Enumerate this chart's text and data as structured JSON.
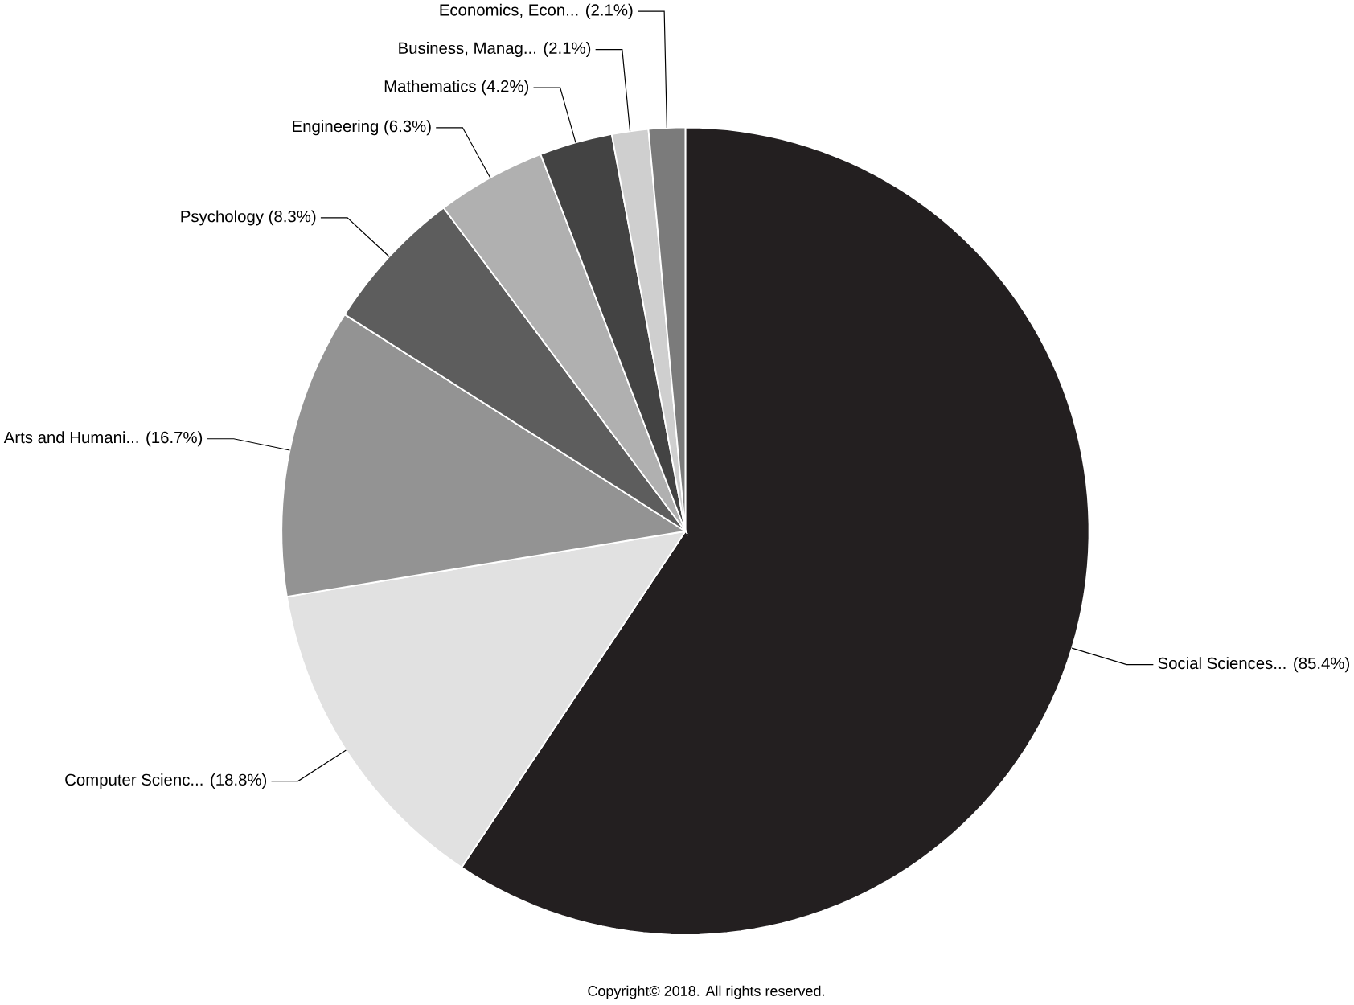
{
  "chart_data": {
    "type": "pie",
    "categories": [
      "Social Sciences...",
      "Computer Scienc...",
      "Arts and Humani...",
      "Psychology",
      "Engineering",
      "Mathematics",
      "Business, Manag...",
      "Economics, Econ..."
    ],
    "values": [
      85.4,
      18.8,
      16.7,
      8.3,
      6.3,
      4.2,
      2.1,
      2.1
    ],
    "value_labels": [
      "(85.4%)",
      "(18.8%)",
      "(16.7%)",
      "(8.3%)",
      "(6.3%)",
      "(4.2%)",
      "(2.1%)",
      "(2.1%)"
    ],
    "colors": [
      "#231f20",
      "#e1e1e1",
      "#939393",
      "#5d5d5d",
      "#b0b0b0",
      "#434343",
      "#cfcfcf",
      "#7b7b7b"
    ],
    "annotations": [
      "Copyright© 2018. All rights reserved."
    ]
  }
}
